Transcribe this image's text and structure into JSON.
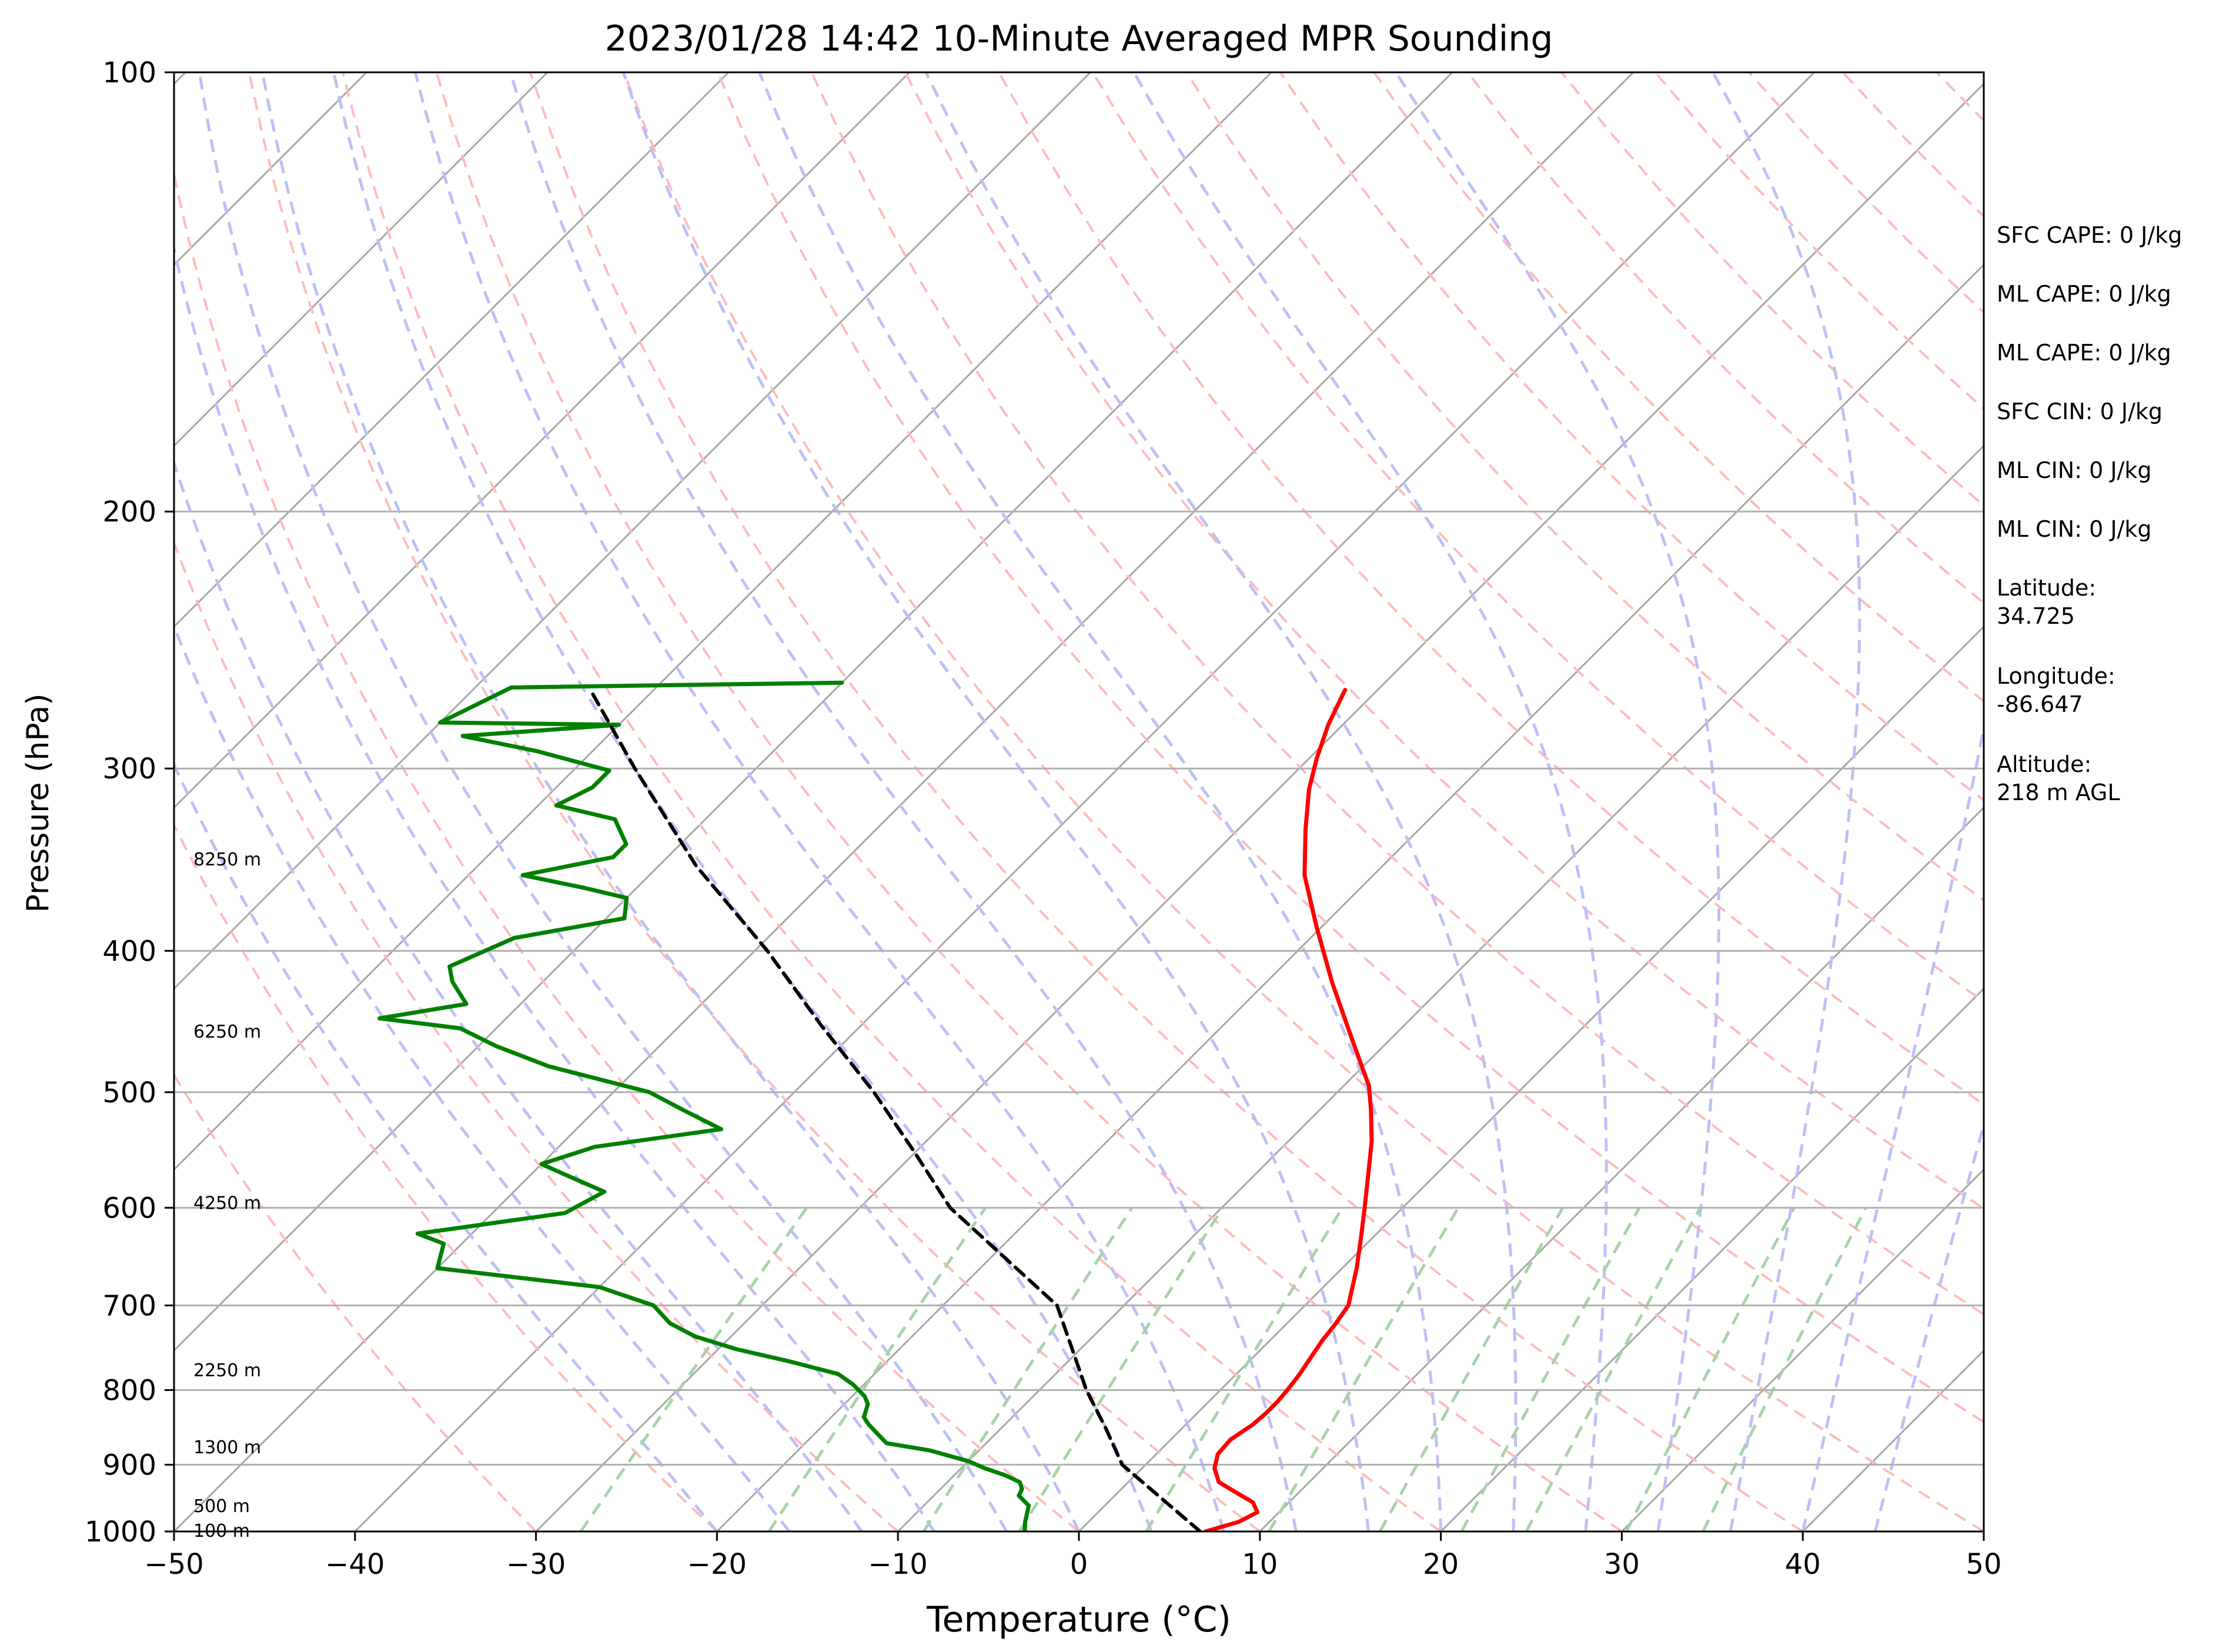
{
  "chart_data": {
    "type": "line",
    "title": "2023/01/28 14:42 10-Minute Averaged MPR Sounding",
    "xlabel": "Temperature (°C)",
    "ylabel": "Pressure (hPa)",
    "xlim": [
      -50,
      50
    ],
    "ylim": [
      1000,
      100
    ],
    "y_scale": "log",
    "skew": "skew-T log-p",
    "grid": true,
    "x_ticks": [
      "−50",
      "−40",
      "−30",
      "−20",
      "−10",
      "0",
      "10",
      "20",
      "30",
      "40",
      "50"
    ],
    "y_ticks": [
      "100",
      "200",
      "300",
      "400",
      "500",
      "600",
      "700",
      "800",
      "900",
      "1000"
    ],
    "series": [
      {
        "color": "#ff0000",
        "points": [
          [
            7,
            1000
          ],
          [
            8.3,
            985
          ],
          [
            8.8,
            970
          ],
          [
            8,
            955
          ],
          [
            6.5,
            940
          ],
          [
            5,
            925
          ],
          [
            4,
            905
          ],
          [
            3.4,
            885
          ],
          [
            3.3,
            865
          ],
          [
            3.7,
            845
          ],
          [
            3.8,
            830
          ],
          [
            3.8,
            815
          ],
          [
            3.7,
            800
          ],
          [
            3.5,
            780
          ],
          [
            3.2,
            760
          ],
          [
            2.9,
            740
          ],
          [
            2.7,
            720
          ],
          [
            2.4,
            700
          ],
          [
            0.8,
            660
          ],
          [
            -0.6,
            630
          ],
          [
            -2.1,
            600
          ],
          [
            -3.7,
            570
          ],
          [
            -5.4,
            540
          ],
          [
            -7.1,
            515
          ],
          [
            -8.6,
            495
          ],
          [
            -12.1,
            460
          ],
          [
            -16.4,
            420
          ],
          [
            -20.3,
            385
          ],
          [
            -23.8,
            355
          ],
          [
            -26.3,
            330
          ],
          [
            -28.3,
            310
          ],
          [
            -29.6,
            295
          ],
          [
            -30.8,
            280
          ],
          [
            -31.8,
            265
          ]
        ]
      },
      {
        "color": "#008000",
        "points": [
          [
            -3,
            1000
          ],
          [
            -3.5,
            985
          ],
          [
            -4.2,
            960
          ],
          [
            -5.3,
            945
          ],
          [
            -5.5,
            935
          ],
          [
            -6,
            925
          ],
          [
            -7.2,
            915
          ],
          [
            -8.7,
            905
          ],
          [
            -10,
            895
          ],
          [
            -12.7,
            880
          ],
          [
            -15.5,
            870
          ],
          [
            -16.3,
            860
          ],
          [
            -17.5,
            845
          ],
          [
            -18.2,
            835
          ],
          [
            -18.4,
            828
          ],
          [
            -18.7,
            818
          ],
          [
            -19.3,
            808
          ],
          [
            -20.6,
            793
          ],
          [
            -22,
            780
          ],
          [
            -25.3,
            765
          ],
          [
            -29,
            750
          ],
          [
            -32,
            735
          ],
          [
            -34.1,
            720
          ],
          [
            -36,
            700
          ],
          [
            -40,
            680
          ],
          [
            -50,
            660
          ],
          [
            -51,
            635
          ],
          [
            -53,
            625
          ],
          [
            -46,
            605
          ],
          [
            -45,
            585
          ],
          [
            -48,
            570
          ],
          [
            -50,
            560
          ],
          [
            -48,
            545
          ],
          [
            -42,
            530
          ],
          [
            -45,
            515
          ],
          [
            -48,
            500
          ],
          [
            -55,
            480
          ],
          [
            -59,
            465
          ],
          [
            -62,
            452
          ],
          [
            -67,
            445
          ],
          [
            -63,
            435
          ],
          [
            -65,
            420
          ],
          [
            -66,
            410
          ],
          [
            -64,
            392
          ],
          [
            -59,
            380
          ],
          [
            -60,
            368
          ],
          [
            -63,
            362
          ],
          [
            -67,
            355
          ],
          [
            -63,
            345
          ],
          [
            -63,
            338
          ],
          [
            -65,
            325
          ],
          [
            -69,
            318
          ],
          [
            -68,
            309
          ],
          [
            -68,
            301
          ],
          [
            -73,
            292
          ],
          [
            -78,
            285
          ],
          [
            -70,
            280
          ],
          [
            -80,
            279
          ],
          [
            -78,
            264
          ],
          [
            -60,
            262
          ]
        ]
      },
      {
        "color": "#000000",
        "dashed": true,
        "points": [
          [
            6.7,
            1000
          ],
          [
            -1.3,
            900
          ],
          [
            -4.2,
            850
          ],
          [
            -7.4,
            800
          ],
          [
            -13.7,
            700
          ],
          [
            -25,
            600
          ],
          [
            -30,
            550
          ],
          [
            -35.6,
            500
          ],
          [
            -42.2,
            450
          ],
          [
            -49.3,
            400
          ],
          [
            -57.9,
            350
          ],
          [
            -66.7,
            300
          ],
          [
            -73.5,
            265
          ]
        ]
      }
    ],
    "height_labels": [
      "8250 m",
      "6250 m",
      "4250 m",
      "2250 m",
      "1300 m",
      "500 m",
      "100 m"
    ],
    "height_label_pressures": [
      346,
      454,
      595,
      775,
      875,
      960,
      998
    ],
    "indices": [
      {
        "label": "SFC CAPE: 0 J/kg"
      },
      {
        "label": "ML CAPE: 0 J/kg"
      },
      {
        "label": "ML CAPE: 0 J/kg"
      },
      {
        "label": "SFC CIN: 0 J/kg"
      },
      {
        "label": "ML CIN: 0 J/kg"
      },
      {
        "label": "ML CIN: 0 J/kg"
      },
      {
        "label": "Latitude:",
        "value": "34.725"
      },
      {
        "label": "Longitude:",
        "value": "-86.647"
      },
      {
        "label": "Altitude:",
        "value": "218 m AGL"
      }
    ],
    "colors": {
      "isotherms": "#a6a6a6",
      "dry_adiabats": "#ffbbbb",
      "moist_adiabats": "#bfbff5",
      "mixing_ratio": "#a8d2a8"
    }
  }
}
